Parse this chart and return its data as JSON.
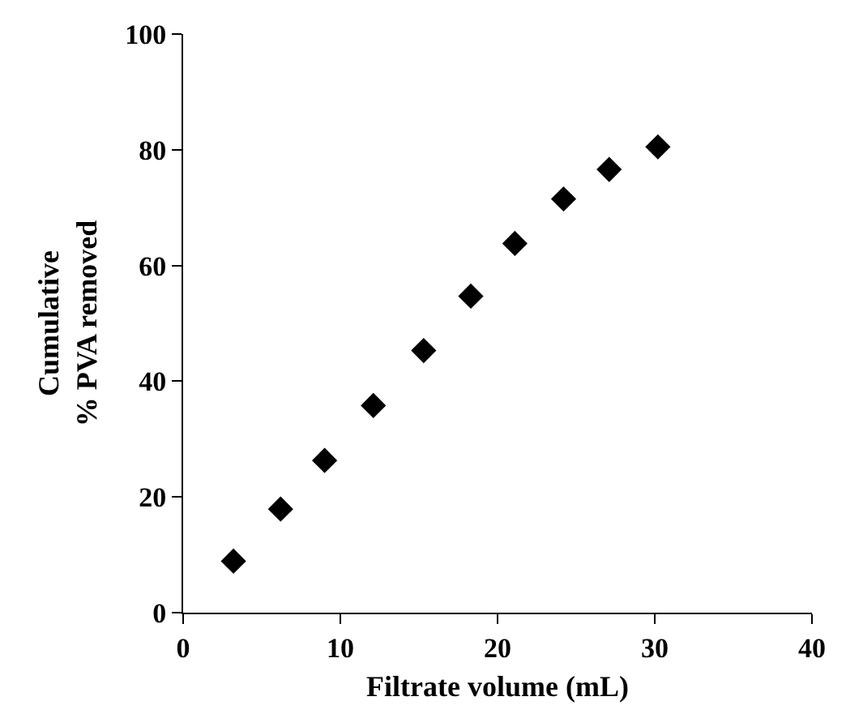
{
  "chart_data": {
    "type": "scatter",
    "xlabel": "Filtrate volume (mL)",
    "ylabel": "Cumulative\n% PVA removed",
    "x": [
      3.2,
      6.2,
      9.0,
      12.1,
      15.3,
      18.3,
      21.1,
      24.2,
      27.1,
      30.2
    ],
    "series": [
      {
        "color": "#000000",
        "values": [
          8.9,
          17.9,
          26.3,
          35.8,
          45.3,
          54.7,
          63.8,
          71.5,
          76.6,
          80.5
        ]
      }
    ],
    "xlim": [
      0,
      40
    ],
    "xticks": [
      0,
      10,
      20,
      30,
      40
    ],
    "ylim": [
      0,
      100
    ],
    "yticks": [
      0,
      20,
      40,
      60,
      80,
      100
    ],
    "marker": "diamond"
  }
}
